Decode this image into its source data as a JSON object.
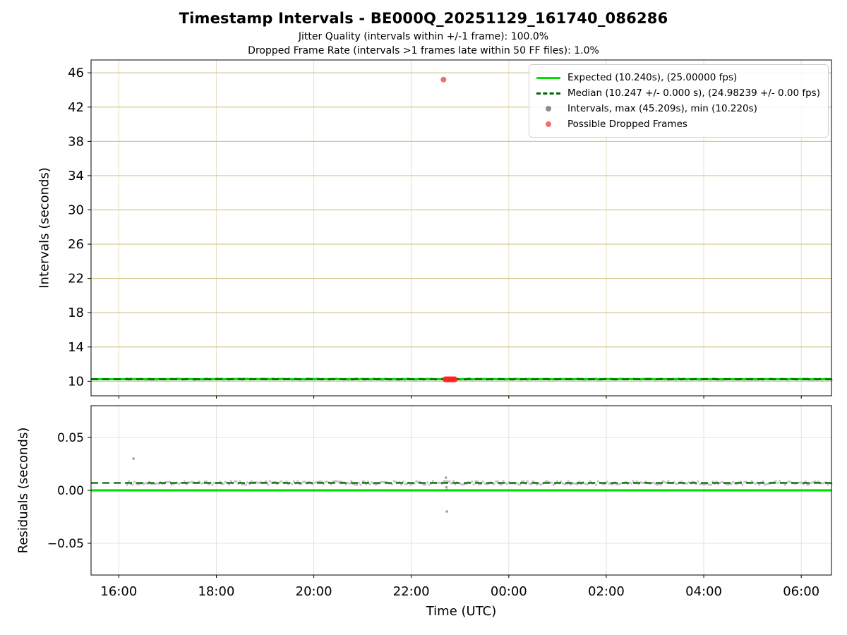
{
  "title": "Timestamp Intervals - BE000Q_20251129_161740_086286",
  "subtitles": [
    "Jitter Quality (intervals within +/-1 frame): 100.0%",
    "Dropped Frame Rate (intervals >1 frames late within 50 FF files): 1.0%"
  ],
  "axes": {
    "y1_label": "Intervals (seconds)",
    "y2_label": "Residuals (seconds)",
    "x_label": "Time (UTC)"
  },
  "legend": {
    "items": [
      {
        "marker": "solid-green-line",
        "label": "Expected (10.240s), (25.00000 fps)"
      },
      {
        "marker": "dashed-darkgreen-line",
        "label": "Median (10.247 +/- 0.000 s), (24.98239 +/- 0.00 fps)"
      },
      {
        "marker": "gray-dot",
        "label": "Intervals, max (45.209s), min (10.220s)"
      },
      {
        "marker": "red-dot",
        "label": "Possible Dropped Frames"
      }
    ]
  },
  "colors": {
    "expected_line": "#00e000",
    "median_line": "#006400",
    "intervals_marker": "#8c8c8c",
    "dropped_marker": "#ff2222",
    "dropped_marker_soft": "#f36e6e",
    "grid_top": "#d2c98f",
    "grid_top_vertical": "#e5e0c2",
    "grid_bottom": "#e2e2e2",
    "axis": "#000000"
  },
  "chart_data": [
    {
      "type": "scatter",
      "title": "Timestamp Intervals - BE000Q_20251129_161740_086286",
      "ylabel": "Intervals (seconds)",
      "xlabel": "Time (UTC)",
      "ylim": [
        8.3,
        47.5
      ],
      "yticks": [
        10,
        14,
        18,
        22,
        26,
        30,
        34,
        38,
        42,
        46
      ],
      "xlim_hours": [
        15.43,
        30.62
      ],
      "xticks_hours": [
        16,
        18,
        20,
        22,
        24,
        26,
        28,
        30
      ],
      "xtick_labels": [
        "16:00",
        "18:00",
        "20:00",
        "22:00",
        "00:00",
        "02:00",
        "04:00",
        "06:00"
      ],
      "grid": true,
      "legend_position": "upper right",
      "expected_interval_s": 10.24,
      "expected_fps": 25.0,
      "median_interval_s": 10.247,
      "median_interval_err_s": 0.0,
      "median_fps": 24.98239,
      "median_fps_err": 0.0,
      "max_interval_s": 45.209,
      "min_interval_s": 10.22,
      "jitter_quality_pct": 100.0,
      "dropped_frame_rate_pct": 1.0,
      "ff_file_count": 50,
      "intervals_band": {
        "start_hour": 16.17,
        "end_hour": 30.62,
        "value_s": 10.247
      },
      "dropped_frames": {
        "outlier": {
          "hour": 22.66,
          "value_s": 45.209
        },
        "cluster": {
          "start_hour": 22.7,
          "end_hour": 22.89,
          "value_s": 10.22,
          "count": 6
        }
      }
    },
    {
      "type": "scatter",
      "ylabel": "Residuals (seconds)",
      "ylim": [
        -0.08,
        0.08
      ],
      "yticks": [
        -0.05,
        0.0,
        0.05
      ],
      "ytick_labels": [
        "−0.05",
        "0.00",
        "0.05"
      ],
      "xlim_hours": [
        15.43,
        30.62
      ],
      "xticks_hours": [
        16,
        18,
        20,
        22,
        24,
        26,
        28,
        30
      ],
      "grid": true,
      "expected_value": 0.0,
      "median_value": 0.007,
      "residuals_band": {
        "start_hour": 16.17,
        "end_hour": 30.62,
        "value": 0.007,
        "jitter": 0.0018
      },
      "outlier_points": [
        {
          "hour": 16.3,
          "value": 0.03
        },
        {
          "hour": 22.71,
          "value": 0.012
        },
        {
          "hour": 22.72,
          "value": 0.003
        },
        {
          "hour": 22.73,
          "value": 0.0005
        },
        {
          "hour": 22.73,
          "value": -0.02
        }
      ]
    }
  ]
}
